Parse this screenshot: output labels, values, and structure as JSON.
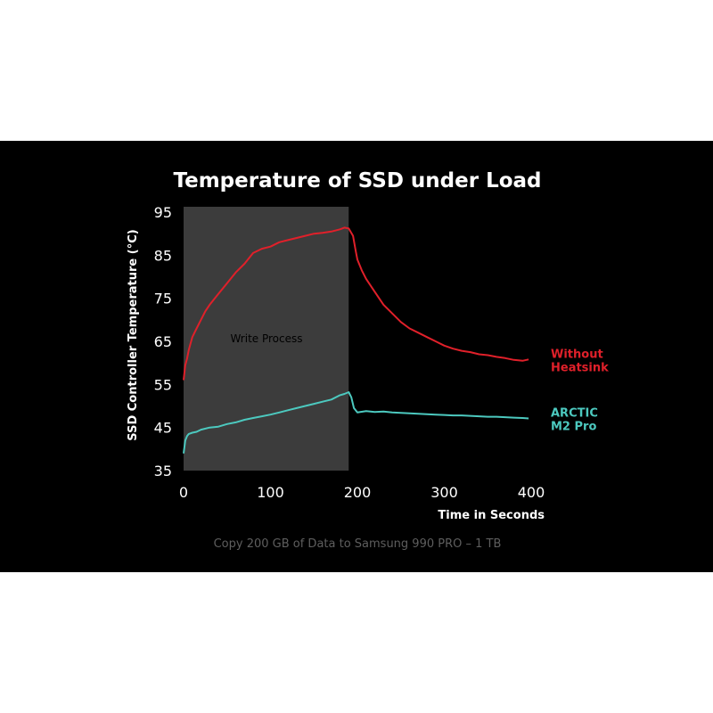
{
  "chart_data": {
    "type": "line",
    "title": "Temperature of SSD under Load",
    "xlabel": "Time in Seconds",
    "ylabel": "SSD Controller Temperature (°C)",
    "caption": "Copy 200 GB of Data to Samsung 990 PRO  – 1 TB",
    "xlim": [
      0,
      400
    ],
    "ylim": [
      35,
      95
    ],
    "x_ticks": [
      0,
      100,
      200,
      300,
      400
    ],
    "y_ticks": [
      35,
      45,
      55,
      65,
      75,
      85,
      95
    ],
    "grid": false,
    "legend": "right-side labels",
    "region": {
      "label": "Write Process",
      "x_start": 0,
      "x_end": 190,
      "color": "#3c3c3c"
    },
    "series": [
      {
        "name_lines": [
          "Without",
          "Heatsink"
        ],
        "color": "#e0202a",
        "x": [
          0,
          2,
          4,
          6,
          8,
          10,
          15,
          20,
          25,
          30,
          40,
          50,
          60,
          70,
          80,
          90,
          100,
          110,
          120,
          130,
          140,
          150,
          160,
          170,
          180,
          185,
          190,
          195,
          198,
          200,
          205,
          210,
          220,
          230,
          240,
          250,
          260,
          270,
          280,
          290,
          300,
          310,
          320,
          330,
          340,
          350,
          360,
          370,
          380,
          390,
          397
        ],
        "y": [
          56,
          59.5,
          61,
          63,
          64.5,
          66,
          68,
          70,
          72,
          73.5,
          76,
          78.5,
          81,
          83,
          85.5,
          86.5,
          87,
          88,
          88.5,
          89,
          89.5,
          90,
          90.2,
          90.5,
          91,
          91.4,
          91.2,
          89.5,
          86,
          84,
          81.5,
          79.5,
          76.5,
          73.5,
          71.5,
          69.5,
          68,
          67,
          66,
          65,
          64,
          63.3,
          62.8,
          62.5,
          62,
          61.8,
          61.4,
          61.1,
          60.7,
          60.5,
          60.8
        ]
      },
      {
        "name_lines": [
          "ARCTIC",
          "M2 Pro"
        ],
        "color": "#4cc9bf",
        "x": [
          0,
          2,
          4,
          6,
          10,
          15,
          20,
          30,
          40,
          50,
          60,
          70,
          80,
          90,
          100,
          110,
          120,
          130,
          140,
          150,
          160,
          170,
          180,
          185,
          190,
          193,
          196,
          200,
          210,
          220,
          230,
          240,
          250,
          260,
          270,
          280,
          290,
          300,
          310,
          320,
          330,
          340,
          350,
          360,
          370,
          380,
          390,
          397
        ],
        "y": [
          39,
          42,
          43,
          43.5,
          43.8,
          44,
          44.5,
          45,
          45.2,
          45.8,
          46.2,
          46.8,
          47.2,
          47.6,
          48,
          48.5,
          49,
          49.5,
          50,
          50.5,
          51,
          51.5,
          52.5,
          52.8,
          53.2,
          52,
          49.5,
          48.5,
          48.8,
          48.6,
          48.7,
          48.5,
          48.4,
          48.3,
          48.2,
          48.1,
          48,
          47.9,
          47.8,
          47.8,
          47.7,
          47.6,
          47.5,
          47.5,
          47.4,
          47.3,
          47.2,
          47.1
        ]
      }
    ]
  }
}
